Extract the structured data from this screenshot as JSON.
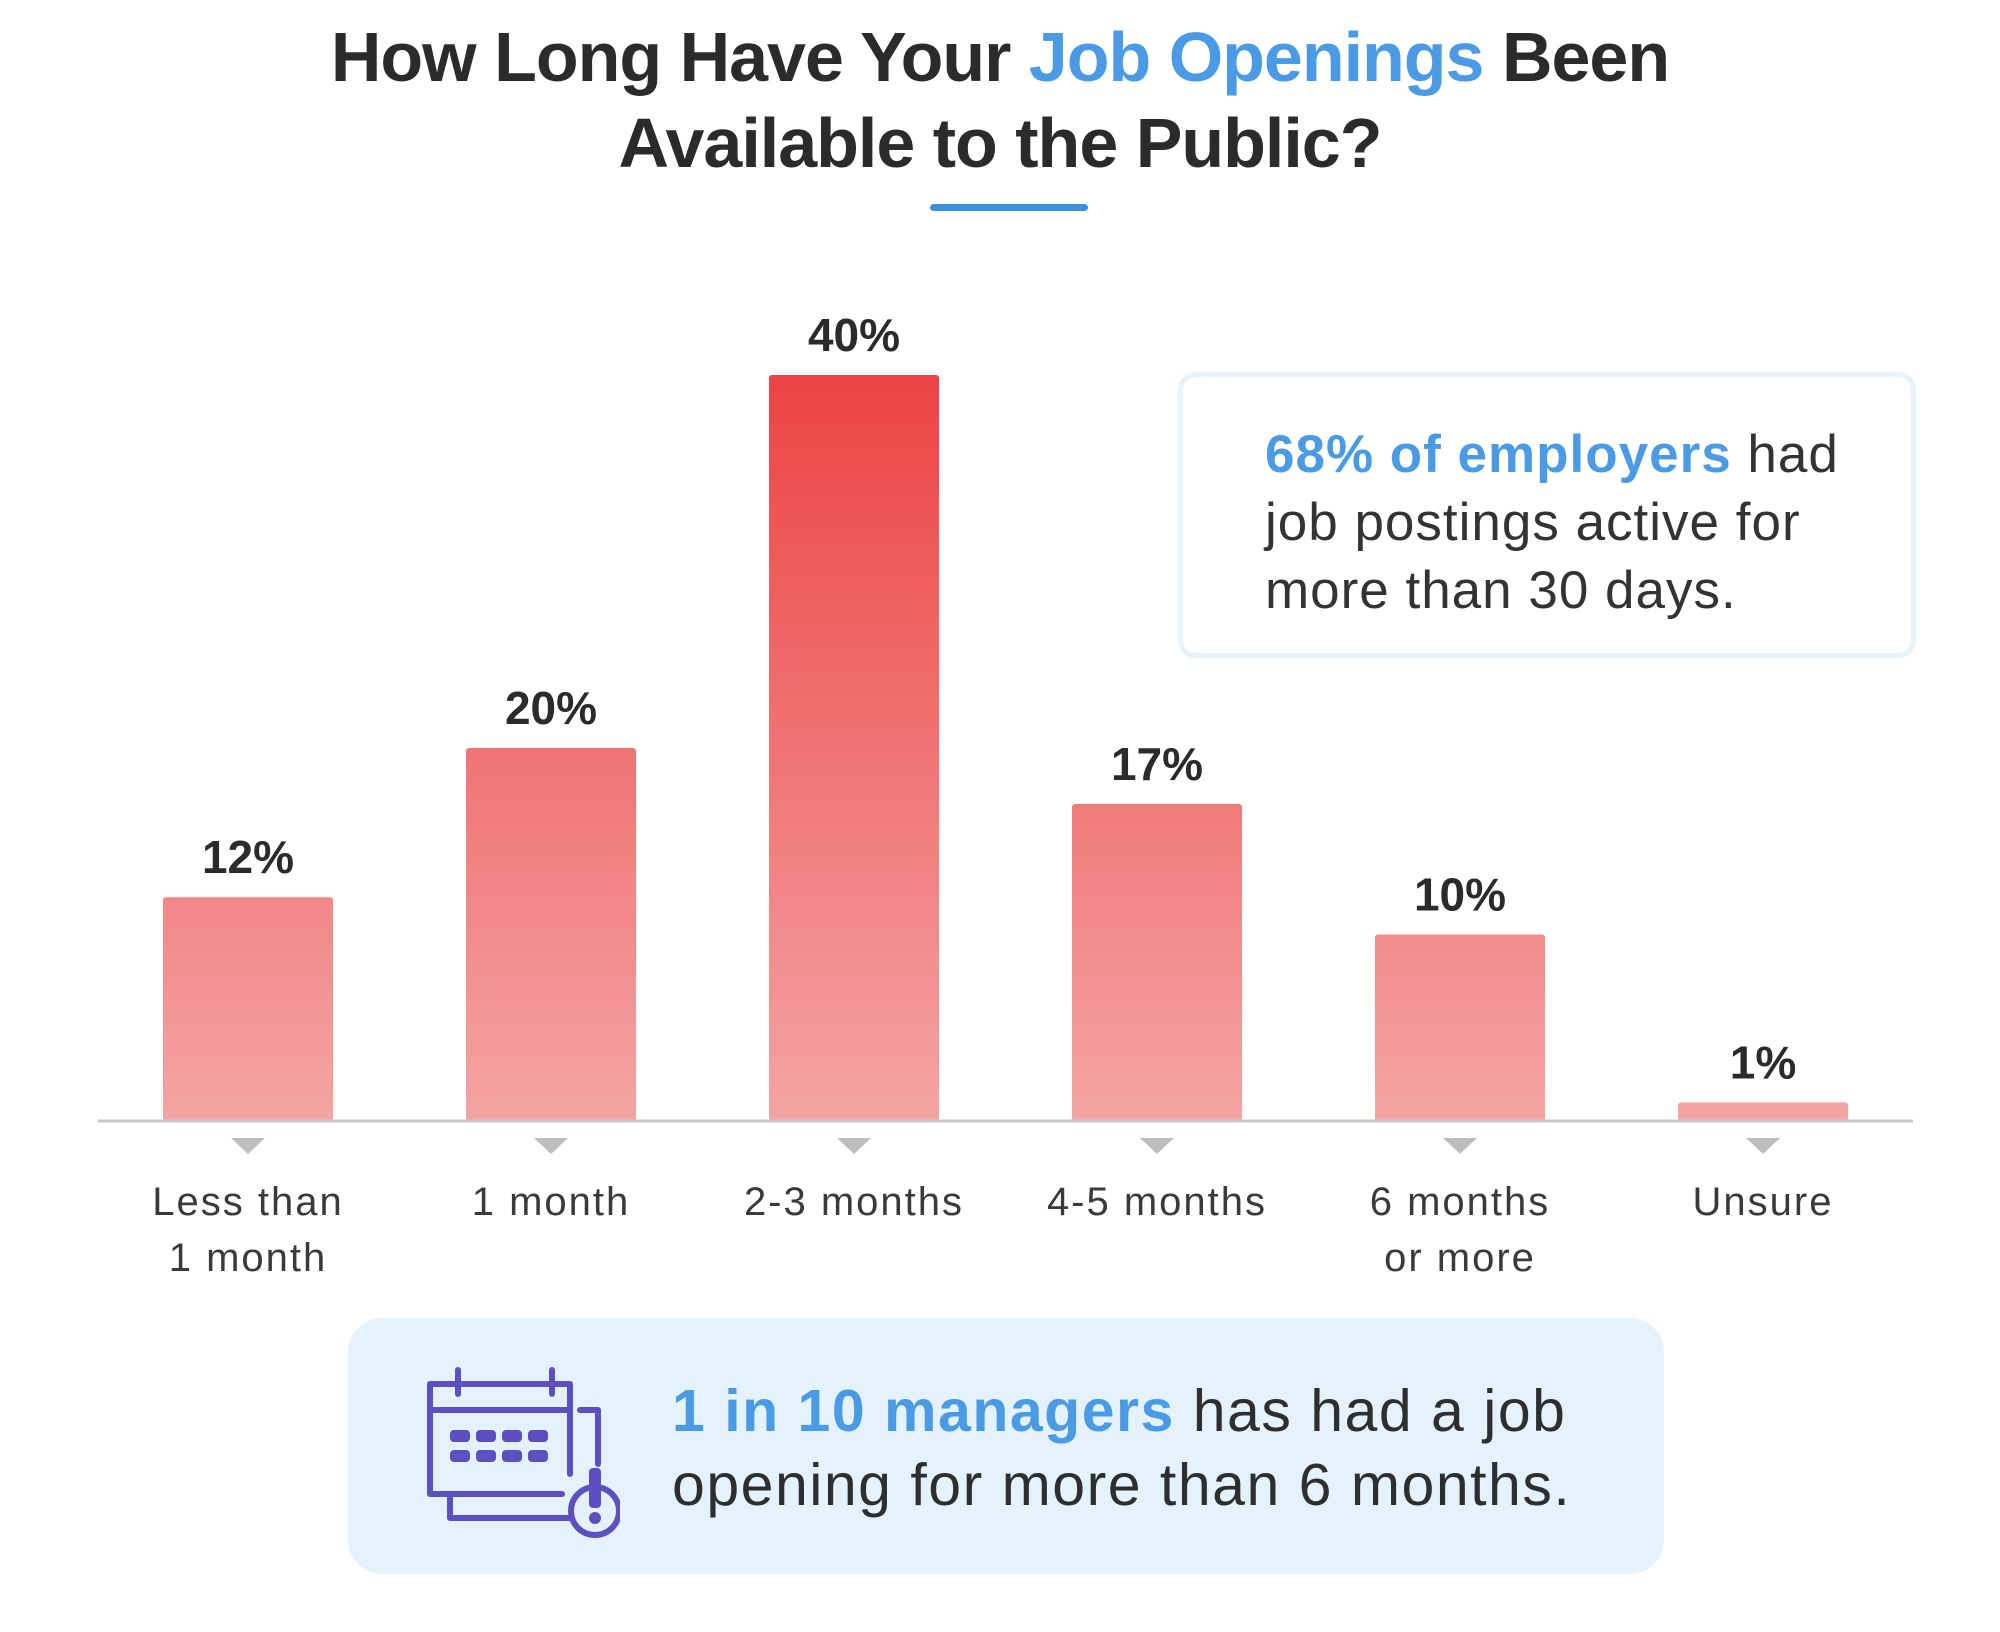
{
  "title": {
    "part1": "How Long Have Your ",
    "highlight": "Job Openings",
    "part2": " Been",
    "line2": "Available to the Public?"
  },
  "callout": {
    "highlight": "68% of employers",
    "text": " had job postings active for more than 30 days."
  },
  "bottom_banner": {
    "icon": "calendar-alert-icon",
    "highlight": "1 in 10 managers",
    "text": " has had a job opening for more than 6 months."
  },
  "colors": {
    "accent_blue": "#4a9ae6",
    "bar_top": "#ec4343",
    "bar_bottom": "#f4a4a4",
    "text_dark": "#2b2b2b",
    "axis": "#c8c8c8",
    "banner_bg": "#e4f2fd",
    "icon_purple": "#5c4fbf"
  },
  "chart_data": {
    "type": "bar",
    "categories": [
      [
        "Less than",
        "1 month"
      ],
      [
        "1 month"
      ],
      [
        "2-3 months"
      ],
      [
        "4-5 months"
      ],
      [
        "6 months",
        "or more"
      ],
      [
        "Unsure"
      ]
    ],
    "values": [
      12,
      20,
      40,
      17,
      10,
      1
    ],
    "data_labels": [
      "12%",
      "20%",
      "40%",
      "17%",
      "10%",
      "1%"
    ],
    "ylim": [
      0,
      40
    ],
    "grid": false,
    "legend": "none"
  }
}
